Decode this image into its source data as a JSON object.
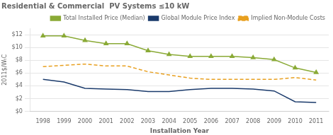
{
  "chart_data": {
    "type": "line",
    "title": "Residential & Commercial  PV Systems ≤10 kW",
    "x_label": "Installation Year",
    "y_label": "2011$/WₜC",
    "x": [
      1998,
      1999,
      2000,
      2001,
      2002,
      2003,
      2004,
      2005,
      2006,
      2007,
      2008,
      2009,
      2010,
      2011
    ],
    "series": [
      {
        "name": "Total Installed Price (Median)",
        "color": "#8aaa36",
        "marker": "triangle",
        "line_style": "solid",
        "values": [
          11.8,
          11.8,
          11.1,
          10.6,
          10.6,
          9.5,
          8.9,
          8.6,
          8.6,
          8.6,
          8.4,
          8.1,
          6.8,
          6.1
        ]
      },
      {
        "name": "Global Module Price Index",
        "color": "#1a3a6b",
        "marker": "none",
        "line_style": "solid",
        "values": [
          5.0,
          4.6,
          3.6,
          3.5,
          3.4,
          3.1,
          3.1,
          3.4,
          3.6,
          3.6,
          3.5,
          3.2,
          1.5,
          1.4
        ]
      },
      {
        "name": "Implied Non-Module Costs",
        "color": "#e8a020",
        "marker": "none",
        "line_style": "dashed",
        "values": [
          7.0,
          7.2,
          7.4,
          7.1,
          7.1,
          6.2,
          5.7,
          5.2,
          5.0,
          5.0,
          5.0,
          5.0,
          5.3,
          4.9
        ]
      }
    ],
    "xlim": [
      1997.4,
      2011.6
    ],
    "xticks": [
      1998,
      1999,
      2000,
      2001,
      2002,
      2003,
      2004,
      2005,
      2006,
      2007,
      2008,
      2009,
      2010,
      2011
    ],
    "ylim": [
      0,
      13
    ],
    "yticks": [
      {
        "value": 0,
        "label": "$0"
      },
      {
        "value": 2,
        "label": "$2"
      },
      {
        "value": 4,
        "label": "$4"
      },
      {
        "value": 6,
        "label": "$6"
      },
      {
        "value": 8,
        "label": "$8"
      },
      {
        "value": 10,
        "label": "$10"
      },
      {
        "value": 12,
        "label": "$12"
      }
    ],
    "grid": "y",
    "legend": "upper right"
  }
}
